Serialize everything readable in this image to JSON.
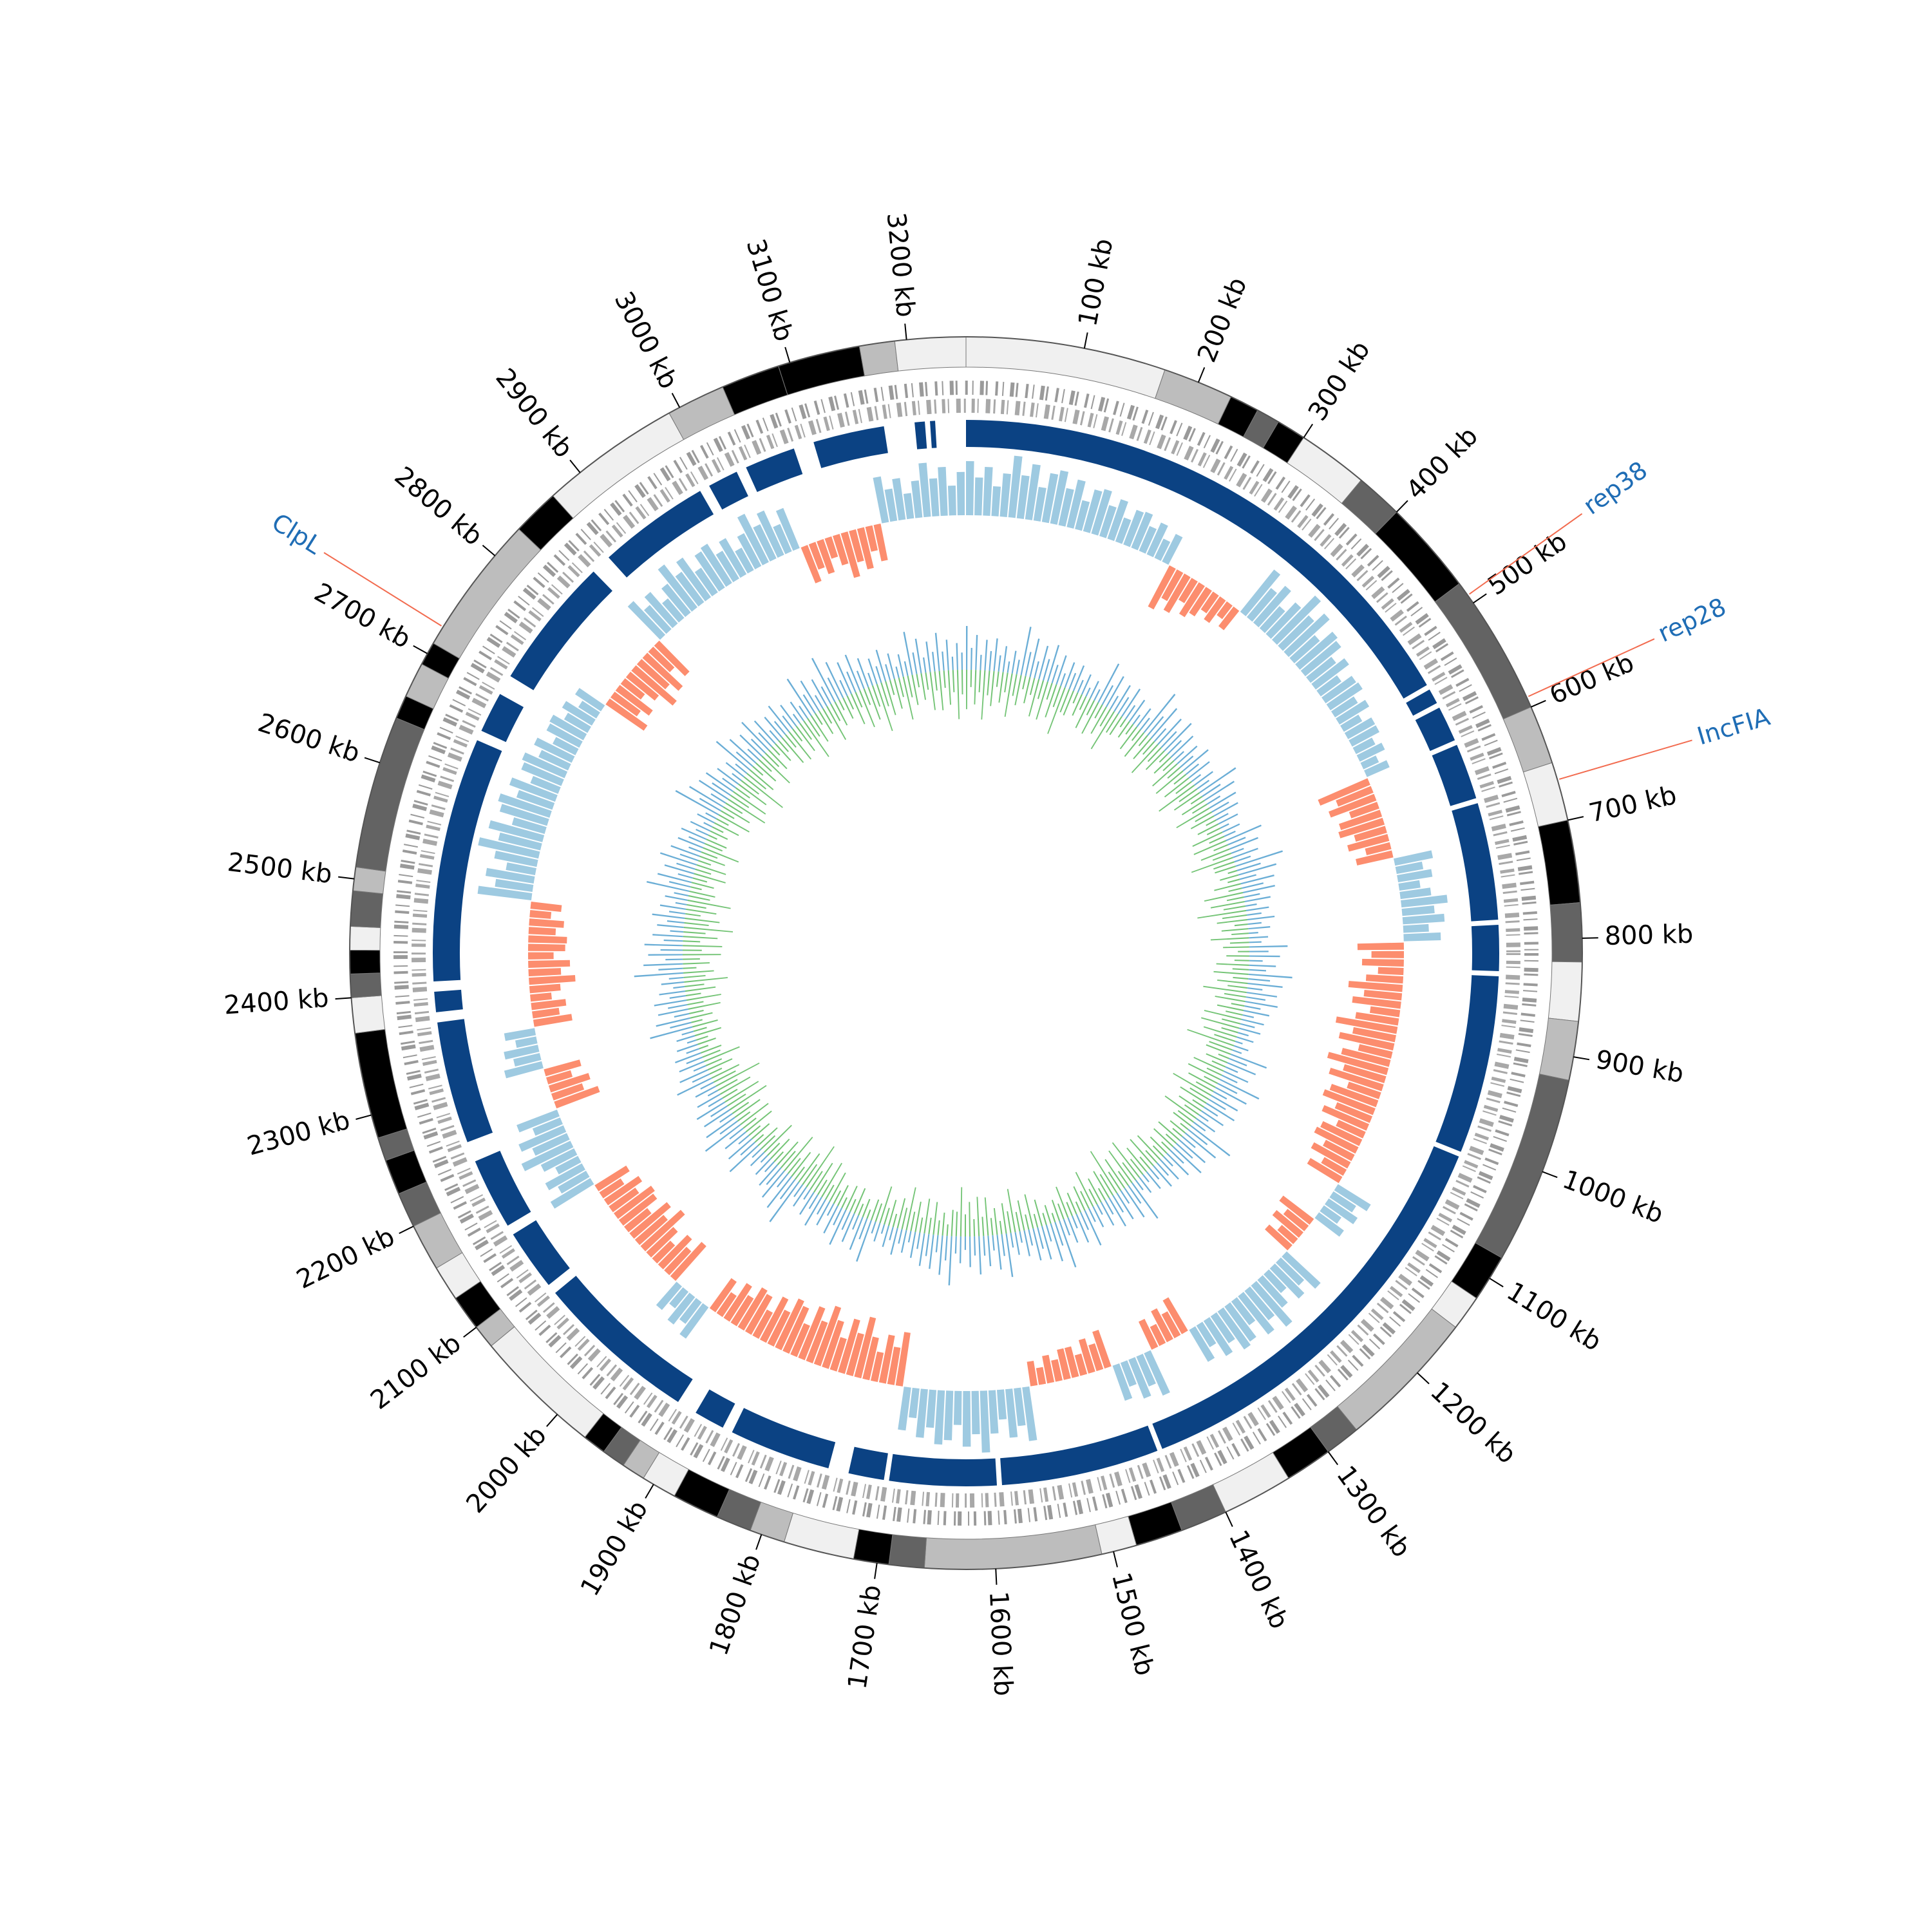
{
  "chart_data": {
    "type": "circos",
    "xlim": [
      0,
      3250
    ],
    "xticks": [
      {
        "value": 100,
        "label": "100 kb"
      },
      {
        "value": 200,
        "label": "200 kb"
      },
      {
        "value": 300,
        "label": "300 kb"
      },
      {
        "value": 400,
        "label": "400 kb"
      },
      {
        "value": 500,
        "label": "500 kb"
      },
      {
        "value": 600,
        "label": "600 kb"
      },
      {
        "value": 700,
        "label": "700 kb"
      },
      {
        "value": 800,
        "label": "800 kb"
      },
      {
        "value": 900,
        "label": "900 kb"
      },
      {
        "value": 1000,
        "label": "1000 kb"
      },
      {
        "value": 1100,
        "label": "1100 kb"
      },
      {
        "value": 1200,
        "label": "1200 kb"
      },
      {
        "value": 1300,
        "label": "1300 kb"
      },
      {
        "value": 1400,
        "label": "1400 kb"
      },
      {
        "value": 1500,
        "label": "1500 kb"
      },
      {
        "value": 1600,
        "label": "1600 kb"
      },
      {
        "value": 1700,
        "label": "1700 kb"
      },
      {
        "value": 1800,
        "label": "1800 kb"
      },
      {
        "value": 1900,
        "label": "1900 kb"
      },
      {
        "value": 2000,
        "label": "2000 kb"
      },
      {
        "value": 2100,
        "label": "2100 kb"
      },
      {
        "value": 2200,
        "label": "2200 kb"
      },
      {
        "value": 2300,
        "label": "2300 kb"
      },
      {
        "value": 2400,
        "label": "2400 kb"
      },
      {
        "value": 2500,
        "label": "2500 kb"
      },
      {
        "value": 2600,
        "label": "2600 kb"
      },
      {
        "value": 2700,
        "label": "2700 kb"
      },
      {
        "value": 2800,
        "label": "2800 kb"
      },
      {
        "value": 2900,
        "label": "2900 kb"
      },
      {
        "value": 3000,
        "label": "3000 kb"
      },
      {
        "value": 3100,
        "label": "3100 kb"
      },
      {
        "value": 3200,
        "label": "3200 kb"
      }
    ],
    "ideogram": [
      {
        "start": 0,
        "end": 170,
        "color": "#f0f0f0"
      },
      {
        "start": 170,
        "end": 230,
        "color": "#bdbdbd"
      },
      {
        "start": 230,
        "end": 255,
        "color": "#000000"
      },
      {
        "start": 255,
        "end": 275,
        "color": "#636363"
      },
      {
        "start": 275,
        "end": 300,
        "color": "#000000"
      },
      {
        "start": 300,
        "end": 360,
        "color": "#f0f0f0"
      },
      {
        "start": 360,
        "end": 400,
        "color": "#636363"
      },
      {
        "start": 400,
        "end": 480,
        "color": "#000000"
      },
      {
        "start": 480,
        "end": 600,
        "color": "#636363"
      },
      {
        "start": 600,
        "end": 650,
        "color": "#bdbdbd"
      },
      {
        "start": 650,
        "end": 700,
        "color": "#f0f0f0"
      },
      {
        "start": 700,
        "end": 770,
        "color": "#000000"
      },
      {
        "start": 770,
        "end": 820,
        "color": "#636363"
      },
      {
        "start": 820,
        "end": 870,
        "color": "#f0f0f0"
      },
      {
        "start": 870,
        "end": 920,
        "color": "#bdbdbd"
      },
      {
        "start": 920,
        "end": 1080,
        "color": "#636363"
      },
      {
        "start": 1080,
        "end": 1120,
        "color": "#000000"
      },
      {
        "start": 1120,
        "end": 1150,
        "color": "#f0f0f0"
      },
      {
        "start": 1150,
        "end": 1270,
        "color": "#bdbdbd"
      },
      {
        "start": 1270,
        "end": 1300,
        "color": "#636363"
      },
      {
        "start": 1300,
        "end": 1340,
        "color": "#000000"
      },
      {
        "start": 1340,
        "end": 1400,
        "color": "#f0f0f0"
      },
      {
        "start": 1400,
        "end": 1440,
        "color": "#636363"
      },
      {
        "start": 1440,
        "end": 1480,
        "color": "#000000"
      },
      {
        "start": 1480,
        "end": 1510,
        "color": "#f0f0f0"
      },
      {
        "start": 1510,
        "end": 1660,
        "color": "#bdbdbd"
      },
      {
        "start": 1660,
        "end": 1690,
        "color": "#636363"
      },
      {
        "start": 1690,
        "end": 1720,
        "color": "#000000"
      },
      {
        "start": 1720,
        "end": 1780,
        "color": "#f0f0f0"
      },
      {
        "start": 1780,
        "end": 1810,
        "color": "#bdbdbd"
      },
      {
        "start": 1810,
        "end": 1840,
        "color": "#636363"
      },
      {
        "start": 1840,
        "end": 1880,
        "color": "#000000"
      },
      {
        "start": 1880,
        "end": 1910,
        "color": "#f0f0f0"
      },
      {
        "start": 1910,
        "end": 1930,
        "color": "#bdbdbd"
      },
      {
        "start": 1930,
        "end": 1950,
        "color": "#636363"
      },
      {
        "start": 1950,
        "end": 1970,
        "color": "#000000"
      },
      {
        "start": 1970,
        "end": 2080,
        "color": "#f0f0f0"
      },
      {
        "start": 2080,
        "end": 2100,
        "color": "#bdbdbd"
      },
      {
        "start": 2100,
        "end": 2130,
        "color": "#000000"
      },
      {
        "start": 2130,
        "end": 2160,
        "color": "#f0f0f0"
      },
      {
        "start": 2160,
        "end": 2200,
        "color": "#bdbdbd"
      },
      {
        "start": 2200,
        "end": 2230,
        "color": "#636363"
      },
      {
        "start": 2230,
        "end": 2260,
        "color": "#000000"
      },
      {
        "start": 2260,
        "end": 2280,
        "color": "#636363"
      },
      {
        "start": 2280,
        "end": 2370,
        "color": "#000000"
      },
      {
        "start": 2370,
        "end": 2400,
        "color": "#f0f0f0"
      },
      {
        "start": 2400,
        "end": 2420,
        "color": "#636363"
      },
      {
        "start": 2420,
        "end": 2440,
        "color": "#000000"
      },
      {
        "start": 2440,
        "end": 2460,
        "color": "#f0f0f0"
      },
      {
        "start": 2460,
        "end": 2490,
        "color": "#636363"
      },
      {
        "start": 2490,
        "end": 2510,
        "color": "#bdbdbd"
      },
      {
        "start": 2510,
        "end": 2640,
        "color": "#636363"
      },
      {
        "start": 2640,
        "end": 2660,
        "color": "#000000"
      },
      {
        "start": 2660,
        "end": 2690,
        "color": "#bdbdbd"
      },
      {
        "start": 2690,
        "end": 2710,
        "color": "#000000"
      },
      {
        "start": 2710,
        "end": 2830,
        "color": "#bdbdbd"
      },
      {
        "start": 2830,
        "end": 2870,
        "color": "#000000"
      },
      {
        "start": 2870,
        "end": 2990,
        "color": "#f0f0f0"
      },
      {
        "start": 2990,
        "end": 3040,
        "color": "#bdbdbd"
      },
      {
        "start": 3040,
        "end": 3090,
        "color": "#000000"
      },
      {
        "start": 3090,
        "end": 3160,
        "color": "#000000"
      },
      {
        "start": 3160,
        "end": 3190,
        "color": "#bdbdbd"
      },
      {
        "start": 3190,
        "end": 3250,
        "color": "#f0f0f0"
      }
    ],
    "contigs": {
      "color": "#0b4283",
      "segments": [
        [
          0,
          540
        ],
        [
          545,
          560
        ],
        [
          565,
          600
        ],
        [
          605,
          660
        ],
        [
          665,
          780
        ],
        [
          785,
          830
        ],
        [
          835,
          1010
        ],
        [
          1015,
          1430
        ],
        [
          1435,
          1590
        ],
        [
          1595,
          1700
        ],
        [
          1705,
          1740
        ],
        [
          1760,
          1860
        ],
        [
          1870,
          1900
        ],
        [
          1920,
          2080
        ],
        [
          2090,
          2150
        ],
        [
          2160,
          2230
        ],
        [
          2250,
          2370
        ],
        [
          2380,
          2400
        ],
        [
          2410,
          2650
        ],
        [
          2660,
          2700
        ],
        [
          2720,
          2850
        ],
        [
          2870,
          2980
        ],
        [
          2990,
          3020
        ],
        [
          3030,
          3080
        ],
        [
          3100,
          3170
        ],
        [
          3200,
          3210
        ],
        [
          3215,
          3220
        ]
      ]
    },
    "annotation_color": "#1f6db5",
    "annotation_line_color": "#f26b4f",
    "annotations": [
      {
        "label": "rep38",
        "position": 492
      },
      {
        "label": "rep28",
        "position": 591
      },
      {
        "label": "IncFIA",
        "position": 665
      },
      {
        "label": "ClpL",
        "position": 2726
      }
    ],
    "x": [
      0,
      50,
      100,
      150,
      200,
      250,
      300,
      350,
      400,
      450,
      500,
      550,
      600,
      650,
      700,
      750,
      800,
      850,
      900,
      950,
      1000,
      1050,
      1100,
      1150,
      1200,
      1250,
      1300,
      1350,
      1400,
      1450,
      1500,
      1550,
      1600,
      1650,
      1700,
      1750,
      1800,
      1850,
      1900,
      1950,
      2000,
      2050,
      2100,
      2150,
      2200,
      2250,
      2300,
      2350,
      2400,
      2450,
      2500,
      2550,
      2600,
      2650,
      2700,
      2750,
      2800,
      2850,
      2900,
      2950,
      3000,
      3050,
      3100,
      3150,
      3200
    ],
    "gc_skew": {
      "ylim": [
        -1,
        1
      ],
      "positive_color": "#9ecae1",
      "negative_color": "#fc8d6e",
      "values": [
        0.7,
        0.8,
        0.7,
        0.6,
        0.5,
        -0.6,
        -0.4,
        0.7,
        0.8,
        0.6,
        0.5,
        0.4,
        -0.7,
        -0.6,
        0.5,
        0.6,
        -0.6,
        -0.7,
        -0.8,
        -0.8,
        -0.7,
        -0.6,
        0.5,
        -0.5,
        0.6,
        0.7,
        0.6,
        -0.5,
        0.6,
        -0.5,
        -0.4,
        0.7,
        0.8,
        0.7,
        -0.7,
        -0.8,
        -0.8,
        -0.7,
        -0.6,
        0.5,
        -0.6,
        -0.7,
        -0.6,
        0.6,
        0.7,
        -0.6,
        0.5,
        -0.5,
        -0.6,
        -0.5,
        0.7,
        0.8,
        0.7,
        0.6,
        0.5,
        -0.6,
        -0.7,
        0.6,
        0.7,
        0.6,
        0.7,
        -0.5,
        -0.6,
        0.6,
        0.7
      ]
    },
    "gc_content": {
      "ylim": [
        0,
        1
      ],
      "series": [
        {
          "color": "#6baed6",
          "values": [
            0.8,
            0.6,
            0.9,
            0.7,
            0.5,
            0.8,
            0.6,
            0.9,
            0.7,
            0.6,
            0.8,
            0.5,
            0.7,
            0.9,
            0.6,
            0.5,
            0.7,
            0.8,
            0.6,
            0.4,
            0.7,
            0.8,
            0.6,
            0.9,
            0.7,
            0.5,
            0.8,
            0.6,
            0.7,
            0.9,
            0.6,
            0.8,
            0.7,
            0.9,
            0.6,
            0.5,
            0.8,
            0.7,
            0.6,
            0.9,
            0.5,
            0.7,
            0.8,
            0.6,
            0.7,
            0.5,
            0.8,
            0.6,
            0.9,
            0.7,
            0.6,
            0.8,
            0.7,
            0.5,
            0.9,
            0.6,
            0.8,
            0.7,
            0.6,
            0.8,
            0.9,
            0.7,
            0.6,
            0.8,
            0.7
          ]
        },
        {
          "color": "#74c476",
          "values": [
            0.9,
            0.8,
            0.7,
            0.9,
            0.6,
            0.8,
            0.5,
            0.7,
            0.6,
            0.8,
            0.7,
            0.6,
            0.8,
            0.5,
            0.9,
            0.7,
            0.6,
            0.8,
            0.7,
            0.9,
            0.6,
            0.8,
            0.7,
            0.5,
            0.6,
            0.8,
            0.9,
            0.7,
            0.6,
            0.5,
            0.8,
            0.7,
            0.9,
            0.6,
            0.8,
            0.7,
            0.5,
            0.6,
            0.9,
            0.8,
            0.7,
            0.6,
            0.8,
            0.9,
            0.7,
            0.5,
            0.6,
            0.8,
            0.7,
            0.9,
            0.8,
            0.6,
            0.7,
            0.5,
            0.8,
            0.9,
            0.7,
            0.6,
            0.8,
            0.7,
            0.6,
            0.9,
            0.8,
            0.7,
            0.9
          ]
        }
      ]
    }
  }
}
